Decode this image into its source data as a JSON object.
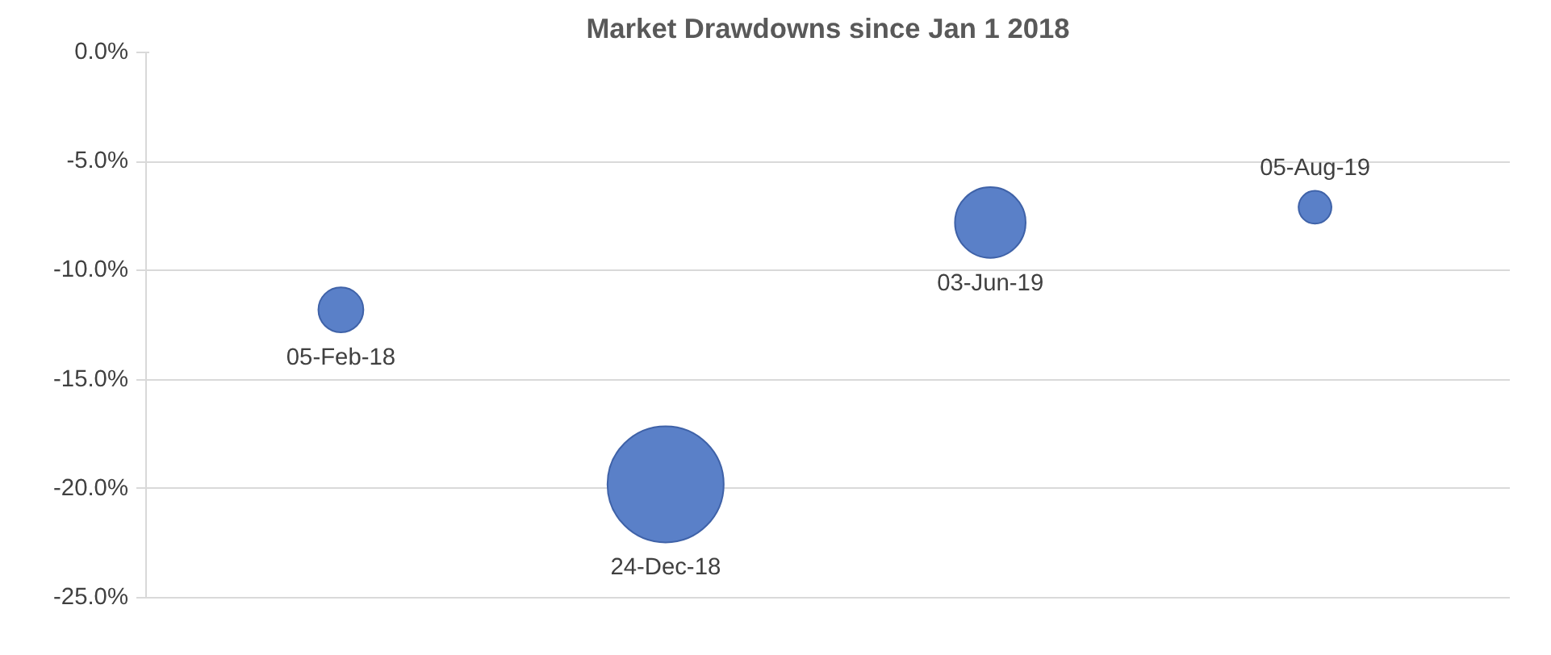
{
  "chart_data": {
    "type": "bubble",
    "title": "Market Drawdowns since Jan 1 2018",
    "categories": [
      null,
      null,
      null,
      null
    ],
    "values": [
      -11.8,
      -19.8,
      -7.8,
      -7.1
    ],
    "sizes": [
      0.15,
      1,
      0.37,
      0.08
    ],
    "color": "#5a80c8",
    "ylim": [
      -25,
      0
    ],
    "yticks": [
      {
        "value": -25,
        "label": "-25.0%"
      },
      {
        "value": -20,
        "label": "-20.0%"
      },
      {
        "value": -15,
        "label": "-15.0%"
      },
      {
        "value": -10,
        "label": "-10.0%"
      },
      {
        "value": -5,
        "label": "-5.0%"
      },
      {
        "value": 0,
        "label": "0.0%"
      }
    ],
    "grid": "y",
    "tick_labels": "y",
    "annotations": [
      "05-Feb-18",
      "24-Dec-18",
      "03-Jun-19",
      "05-Aug-19"
    ]
  }
}
